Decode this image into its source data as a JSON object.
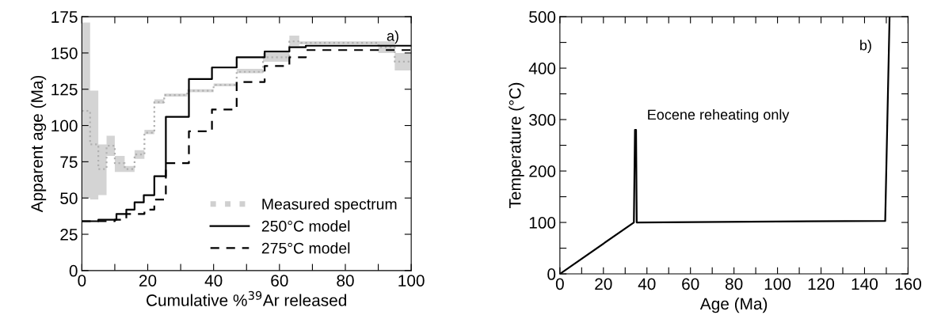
{
  "chart_data": [
    {
      "type": "step",
      "xlabel": "Cumulative %$^{39}$Ar released",
      "ylabel": "Apparent age (Ma)",
      "xlim": [
        0,
        100
      ],
      "ylim": [
        0,
        175
      ],
      "xticks": [
        0,
        {
          "value": 10,
          "label": null
        },
        20,
        {
          "value": 30,
          "label": null
        },
        40,
        {
          "value": 50,
          "label": null
        },
        60,
        {
          "value": 70,
          "label": null
        },
        80,
        {
          "value": 90,
          "label": null
        },
        100
      ],
      "yticks": [
        0,
        25,
        50,
        75,
        100,
        125,
        150,
        175
      ],
      "grid": false,
      "legend": "bottom right",
      "annotations": [
        "a)"
      ],
      "series": [
        {
          "name": "Measured spectrum",
          "color": "#b0b0b0",
          "line_style": "dotted",
          "x": [
            0,
            2.5,
            5,
            7.5,
            10,
            13,
            16,
            19,
            22,
            25,
            32,
            40,
            47,
            55,
            63,
            66,
            90,
            95,
            100
          ],
          "values": [
            110,
            87,
            70,
            86,
            74,
            70,
            80,
            95,
            116,
            121,
            124,
            128,
            137,
            147,
            158,
            157,
            154,
            144,
            144
          ],
          "lower": [
            50,
            49,
            52,
            79,
            68,
            68,
            77,
            94,
            115,
            120,
            123,
            127,
            136,
            144,
            155,
            156,
            150,
            138,
            138
          ],
          "upper": [
            171,
            124,
            87,
            93,
            79,
            72,
            83,
            97,
            118,
            122,
            125,
            129,
            139,
            150,
            162,
            158,
            158,
            150,
            150
          ]
        },
        {
          "name": "250°C model",
          "color": "#000000",
          "line_style": "solid",
          "x": [
            0,
            5,
            10.5,
            13.5,
            16,
            18.8,
            22,
            25.5,
            32.5,
            39.5,
            47,
            55.5,
            63,
            68,
            100
          ],
          "values": [
            34,
            35,
            39,
            42,
            47,
            52,
            65,
            106,
            132,
            140,
            147,
            151,
            154,
            155,
            155
          ]
        },
        {
          "name": "275°C model",
          "color": "#000000",
          "line_style": "dashed",
          "x": [
            0,
            10,
            13.5,
            19,
            22,
            25.5,
            32.5,
            39.5,
            47,
            55.5,
            63,
            68,
            100
          ],
          "values": [
            34,
            35,
            39,
            42,
            49,
            74,
            96,
            111,
            130,
            141,
            147,
            152,
            152
          ]
        }
      ]
    },
    {
      "type": "line",
      "xlabel": "Age (Ma)",
      "ylabel": "Temperature (°C)",
      "xlim": [
        0,
        160
      ],
      "ylim": [
        0,
        500
      ],
      "xticks": [
        0,
        {
          "value": 10,
          "label": null
        },
        20,
        {
          "value": 30,
          "label": null
        },
        40,
        {
          "value": 50,
          "label": null
        },
        60,
        {
          "value": 70,
          "label": null
        },
        80,
        {
          "value": 90,
          "label": null
        },
        100,
        {
          "value": 110,
          "label": null
        },
        120,
        {
          "value": 130,
          "label": null
        },
        140,
        {
          "value": 150,
          "label": null
        },
        160
      ],
      "yticks": [
        0,
        {
          "value": 50,
          "label": null
        },
        100,
        {
          "value": 150,
          "label": null
        },
        200,
        {
          "value": 250,
          "label": null
        },
        300,
        {
          "value": 350,
          "label": null
        },
        400,
        {
          "value": 450,
          "label": null
        },
        500
      ],
      "grid": false,
      "legend": false,
      "annotations": [
        "b)",
        "Eocene reheating only"
      ],
      "series": [
        {
          "color": "#000000",
          "line_style": "solid",
          "x": [
            0,
            34,
            34.5,
            35,
            35.3,
            149.5,
            151.5
          ],
          "values": [
            0,
            100,
            280,
            280,
            100,
            103,
            500
          ]
        }
      ]
    }
  ]
}
